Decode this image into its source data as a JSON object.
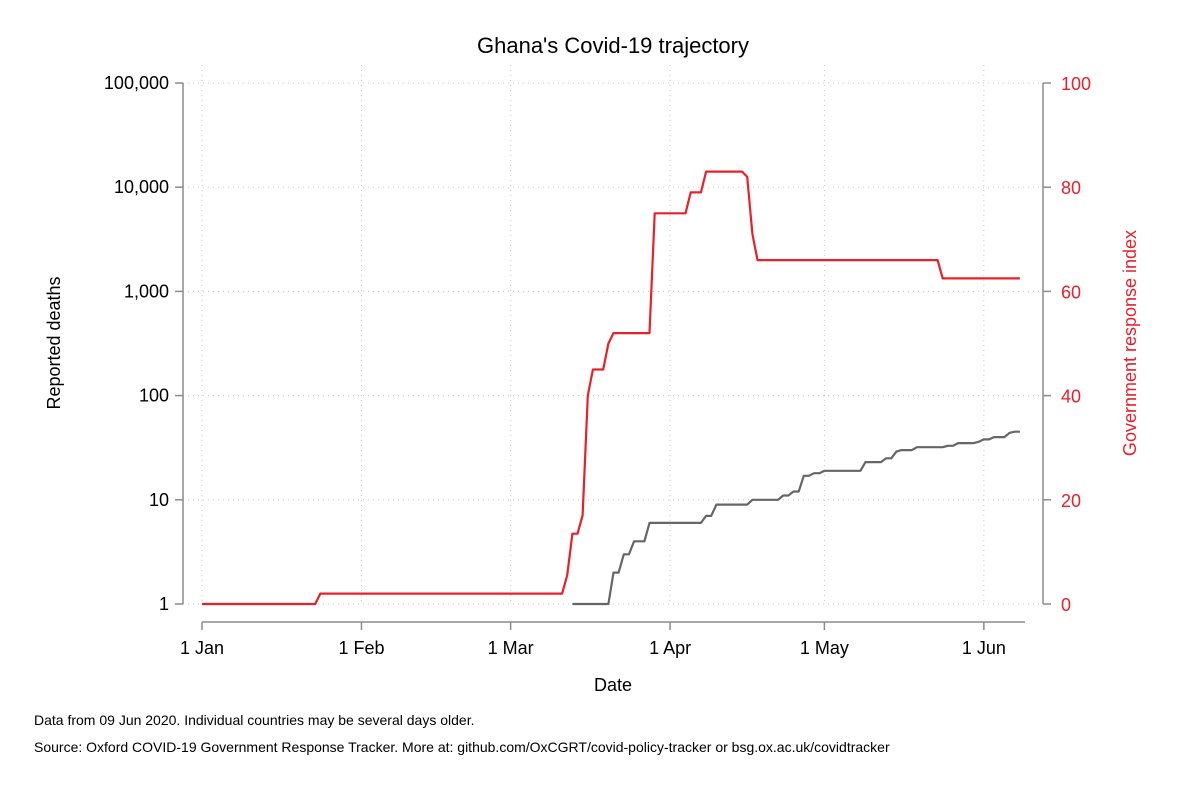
{
  "chart_data": {
    "type": "line",
    "title": "Ghana's Covid-19 trajectory",
    "xlabel": "Date",
    "ylabel_left": "Reported deaths",
    "ylabel_right": "Government response index",
    "x_ticks": [
      "2020-01-01",
      "2020-02-01",
      "2020-03-01",
      "2020-04-01",
      "2020-05-01",
      "2020-06-01"
    ],
    "x_tick_labels": [
      "1 Jan",
      "1 Feb",
      "1 Mar",
      "1 Apr",
      "1 May",
      "1 Jun"
    ],
    "xlim": [
      "2020-01-01",
      "2020-06-09"
    ],
    "y_left": {
      "scale": "log",
      "ylim": [
        1,
        100000
      ],
      "ticks": [
        1,
        10,
        100,
        1000,
        10000,
        100000
      ],
      "tick_labels": [
        "1",
        "10",
        "100",
        "1,000",
        "10,000",
        "100,000"
      ]
    },
    "y_right": {
      "scale": "linear",
      "ylim": [
        0,
        100
      ],
      "ticks": [
        0,
        20,
        40,
        60,
        80,
        100
      ],
      "tick_labels": [
        "0",
        "20",
        "40",
        "60",
        "80",
        "100"
      ]
    },
    "grid": true,
    "series": [
      {
        "axis": "left",
        "color": "#666666",
        "points": [
          [
            "2020-03-13",
            1
          ],
          [
            "2020-03-20",
            1
          ],
          [
            "2020-03-21",
            2
          ],
          [
            "2020-03-22",
            2
          ],
          [
            "2020-03-23",
            3
          ],
          [
            "2020-03-24",
            3
          ],
          [
            "2020-03-25",
            4
          ],
          [
            "2020-03-27",
            4
          ],
          [
            "2020-03-28",
            6
          ],
          [
            "2020-04-07",
            6
          ],
          [
            "2020-04-08",
            7
          ],
          [
            "2020-04-09",
            7
          ],
          [
            "2020-04-10",
            9
          ],
          [
            "2020-04-16",
            9
          ],
          [
            "2020-04-17",
            10
          ],
          [
            "2020-04-22",
            10
          ],
          [
            "2020-04-23",
            11
          ],
          [
            "2020-04-24",
            11
          ],
          [
            "2020-04-25",
            12
          ],
          [
            "2020-04-26",
            12
          ],
          [
            "2020-04-27",
            17
          ],
          [
            "2020-04-28",
            17
          ],
          [
            "2020-04-29",
            18
          ],
          [
            "2020-04-30",
            18
          ],
          [
            "2020-05-01",
            19
          ],
          [
            "2020-05-08",
            19
          ],
          [
            "2020-05-09",
            23
          ],
          [
            "2020-05-12",
            23
          ],
          [
            "2020-05-13",
            25
          ],
          [
            "2020-05-14",
            25
          ],
          [
            "2020-05-15",
            29
          ],
          [
            "2020-05-16",
            30
          ],
          [
            "2020-05-18",
            30
          ],
          [
            "2020-05-19",
            32
          ],
          [
            "2020-05-24",
            32
          ],
          [
            "2020-05-25",
            33
          ],
          [
            "2020-05-26",
            33
          ],
          [
            "2020-05-27",
            35
          ],
          [
            "2020-05-30",
            35
          ],
          [
            "2020-05-31",
            36
          ],
          [
            "2020-06-01",
            38
          ],
          [
            "2020-06-02",
            38
          ],
          [
            "2020-06-03",
            40
          ],
          [
            "2020-06-05",
            40
          ],
          [
            "2020-06-06",
            44
          ],
          [
            "2020-06-07",
            45
          ],
          [
            "2020-06-08",
            45
          ]
        ]
      },
      {
        "axis": "right",
        "color": "#e8202a",
        "points": [
          [
            "2020-01-01",
            0
          ],
          [
            "2020-01-23",
            0
          ],
          [
            "2020-01-24",
            2
          ],
          [
            "2020-03-11",
            2
          ],
          [
            "2020-03-12",
            5.5
          ],
          [
            "2020-03-13",
            13.5
          ],
          [
            "2020-03-14",
            13.5
          ],
          [
            "2020-03-15",
            17
          ],
          [
            "2020-03-16",
            40
          ],
          [
            "2020-03-17",
            45
          ],
          [
            "2020-03-19",
            45
          ],
          [
            "2020-03-20",
            50
          ],
          [
            "2020-03-21",
            52
          ],
          [
            "2020-03-28",
            52
          ],
          [
            "2020-03-29",
            75
          ],
          [
            "2020-04-04",
            75
          ],
          [
            "2020-04-05",
            79
          ],
          [
            "2020-04-07",
            79
          ],
          [
            "2020-04-08",
            83
          ],
          [
            "2020-04-15",
            83
          ],
          [
            "2020-04-16",
            82
          ],
          [
            "2020-04-17",
            71
          ],
          [
            "2020-04-18",
            66
          ],
          [
            "2020-05-23",
            66
          ],
          [
            "2020-05-24",
            62.5
          ],
          [
            "2020-06-08",
            62.5
          ]
        ]
      }
    ]
  },
  "notes": {
    "line1": "Data from 09 Jun 2020. Individual countries may be several days older.",
    "line2": "Source: Oxford COVID-19 Government Response Tracker. More at: github.com/OxCGRT/covid-policy-tracker or bsg.ox.ac.uk/covidtracker"
  }
}
